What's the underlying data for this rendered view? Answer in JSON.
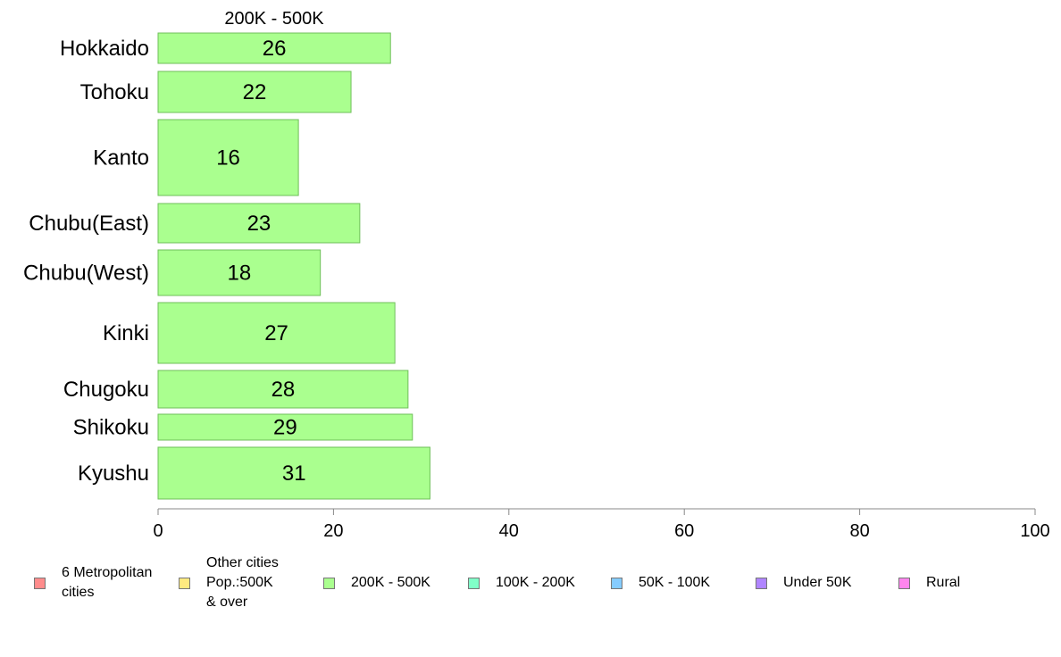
{
  "chart_data": {
    "type": "bar",
    "orientation": "horizontal",
    "title": "200K - 500K",
    "xlabel": "",
    "ylabel": "",
    "xlim": [
      0,
      100
    ],
    "xticks": [
      0,
      20,
      40,
      60,
      80,
      100
    ],
    "grid": false,
    "categories": [
      "Hokkaido",
      "Tohoku",
      "Kanto",
      "Chubu(East)",
      "Chubu(West)",
      "Kinki",
      "Chugoku",
      "Shikoku",
      "Kyushu"
    ],
    "values": [
      26.5,
      22,
      16,
      23,
      18.5,
      27,
      28.5,
      29,
      31
    ],
    "value_labels": [
      "26",
      "22",
      "16",
      "23",
      "18",
      "27",
      "28",
      "29",
      "31"
    ],
    "bar_color": "#aaff8f",
    "bar_edge_color": "#6fbf5a",
    "legend_position": "bottom",
    "legend": [
      {
        "label": "6 Metropolitan\n cities",
        "color": "#ff8c8c"
      },
      {
        "label": "Other cities\nPop.:500K\n & over",
        "color": "#ffea80"
      },
      {
        "label": "200K - 500K",
        "color": "#aaff8f"
      },
      {
        "label": "100K - 200K",
        "color": "#80ffc8"
      },
      {
        "label": "50K - 100K",
        "color": "#85ccff"
      },
      {
        "label": "Under 50K",
        "color": "#b085ff"
      },
      {
        "label": "Rural",
        "color": "#ff85ee"
      }
    ]
  }
}
